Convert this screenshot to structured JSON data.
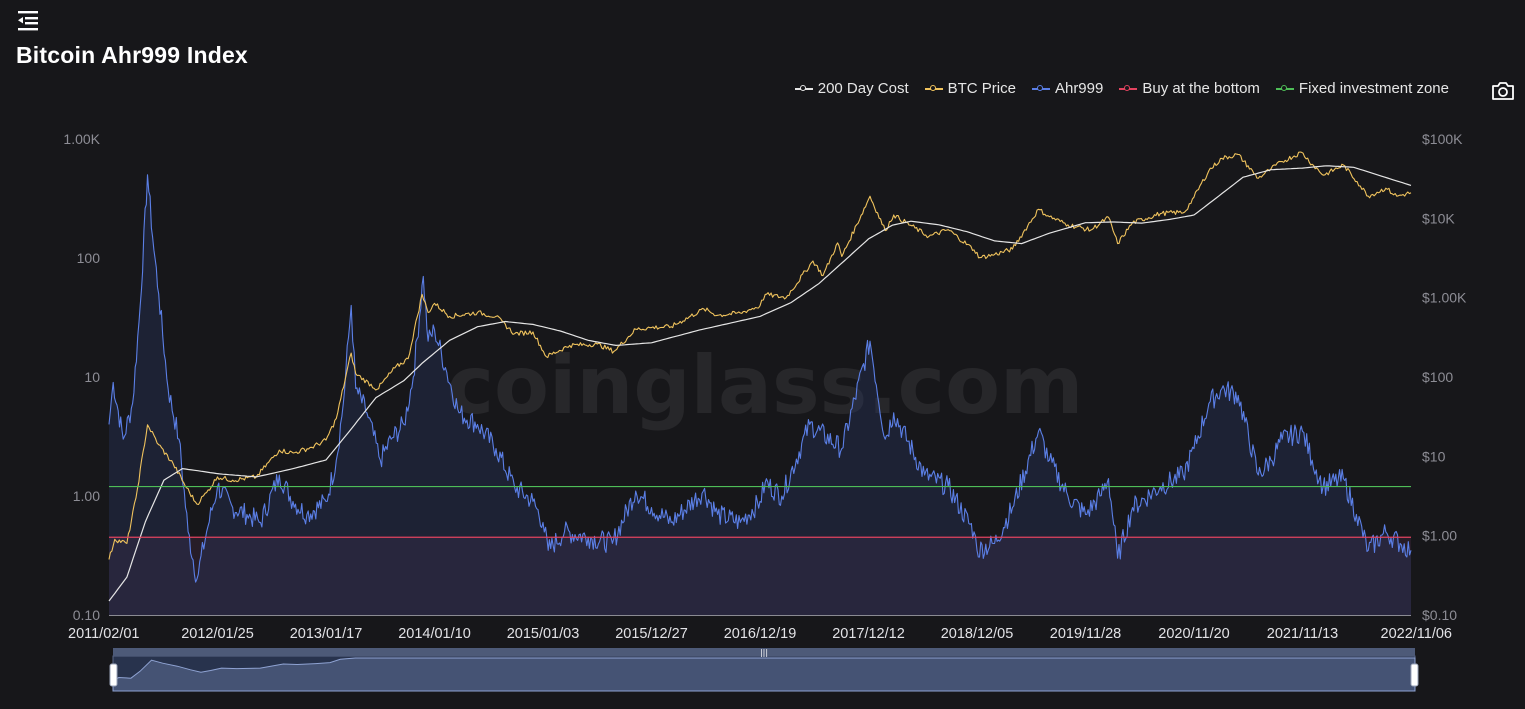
{
  "title": "Bitcoin Ahr999 Index",
  "icons": {
    "menu": "menu-collapse-icon",
    "camera": "camera-icon"
  },
  "watermark": "coinglass.com",
  "legend": [
    {
      "name": "200 Day Cost",
      "color": "#e5e5e5"
    },
    {
      "name": "BTC Price",
      "color": "#f0c35d"
    },
    {
      "name": "Ahr999",
      "color": "#5b7fe6"
    },
    {
      "name": "Buy at the bottom",
      "color": "#e2435f"
    },
    {
      "name": "Fixed investment zone",
      "color": "#4ebd57"
    }
  ],
  "chart_data": {
    "type": "line",
    "x_axis": {
      "type": "date",
      "range": [
        "2011/02/01",
        "2022/11/06"
      ],
      "tick_labels": [
        "2011/02/01",
        "2012/01/25",
        "2013/01/17",
        "2014/01/10",
        "2015/01/03",
        "2015/12/27",
        "2016/12/19",
        "2017/12/12",
        "2018/12/05",
        "2019/11/28",
        "2020/11/20",
        "2021/11/13",
        "2022/11/06"
      ]
    },
    "y_left": {
      "scale": "log",
      "range": [
        0.1,
        1000
      ],
      "tick_labels": [
        "0.10",
        "1.00",
        "10",
        "100",
        "1.00K"
      ]
    },
    "y_right": {
      "scale": "log",
      "range": [
        0.1,
        100000
      ],
      "tick_labels": [
        "$0.10",
        "$1.00",
        "$10",
        "$100",
        "$1.00K",
        "$10K",
        "$100K"
      ]
    },
    "horizontal_lines": [
      {
        "name": "Fixed investment zone",
        "value": 1.2
      },
      {
        "name": "Buy at the bottom",
        "value": 0.45
      }
    ],
    "series": [
      {
        "name": "Ahr999",
        "axis": "left",
        "points": [
          [
            "2011/02/01",
            4
          ],
          [
            "2011/02/15",
            9
          ],
          [
            "2011/03/20",
            3
          ],
          [
            "2011/04/20",
            6
          ],
          [
            "2011/05/15",
            40
          ],
          [
            "2011/06/08",
            500
          ],
          [
            "2011/06/25",
            150
          ],
          [
            "2011/07/15",
            50
          ],
          [
            "2011/08/15",
            8
          ],
          [
            "2011/09/20",
            3
          ],
          [
            "2011/10/20",
            0.5
          ],
          [
            "2011/11/18",
            0.2
          ],
          [
            "2011/12/20",
            0.5
          ],
          [
            "2012/01/25",
            1.2
          ],
          [
            "2012/03/15",
            0.8
          ],
          [
            "2012/05/01",
            0.7
          ],
          [
            "2012/06/15",
            0.6
          ],
          [
            "2012/08/16",
            1.5
          ],
          [
            "2012/09/30",
            0.9
          ],
          [
            "2012/11/15",
            0.7
          ],
          [
            "2013/01/17",
            0.9
          ],
          [
            "2013/02/20",
            2
          ],
          [
            "2013/03/15",
            6
          ],
          [
            "2013/04/10",
            40
          ],
          [
            "2013/04/25",
            8
          ],
          [
            "2013/06/01",
            5
          ],
          [
            "2013/07/15",
            2
          ],
          [
            "2013/08/20",
            3
          ],
          [
            "2013/10/01",
            4
          ],
          [
            "2013/11/01",
            10
          ],
          [
            "2013/12/04",
            70
          ],
          [
            "2013/12/20",
            20
          ],
          [
            "2014/01/10",
            25
          ],
          [
            "2014/02/15",
            12
          ],
          [
            "2014/04/01",
            5
          ],
          [
            "2014/06/01",
            4
          ],
          [
            "2014/08/01",
            2.5
          ],
          [
            "2014/10/01",
            1.2
          ],
          [
            "2014/12/01",
            0.9
          ],
          [
            "2015/01/03",
            0.6
          ],
          [
            "2015/01/20",
            0.35
          ],
          [
            "2015/03/15",
            0.5
          ],
          [
            "2015/06/01",
            0.45
          ],
          [
            "2015/08/20",
            0.4
          ],
          [
            "2015/11/05",
            1.1
          ],
          [
            "2015/12/27",
            0.8
          ],
          [
            "2016/03/01",
            0.6
          ],
          [
            "2016/06/15",
            1.1
          ],
          [
            "2016/08/01",
            0.7
          ],
          [
            "2016/10/15",
            0.6
          ],
          [
            "2016/12/19",
            0.9
          ],
          [
            "2017/01/05",
            1.3
          ],
          [
            "2017/03/01",
            1.0
          ],
          [
            "2017/06/01",
            4
          ],
          [
            "2017/09/15",
            2.5
          ],
          [
            "2017/12/17",
            20
          ],
          [
            "2018/02/05",
            3
          ],
          [
            "2018/03/05",
            5
          ],
          [
            "2018/06/15",
            1.5
          ],
          [
            "2018/09/01",
            1.2
          ],
          [
            "2018/11/25",
            0.5
          ],
          [
            "2018/12/05",
            0.35
          ],
          [
            "2019/02/01",
            0.4
          ],
          [
            "2019/04/01",
            0.8
          ],
          [
            "2019/06/26",
            3.5
          ],
          [
            "2019/08/01",
            2
          ],
          [
            "2019/10/01",
            1.0
          ],
          [
            "2019/11/28",
            0.7
          ],
          [
            "2020/01/15",
            1.0
          ],
          [
            "2020/02/12",
            1.4
          ],
          [
            "2020/03/13",
            0.3
          ],
          [
            "2020/05/01",
            0.8
          ],
          [
            "2020/08/01",
            1.2
          ],
          [
            "2020/10/15",
            1.5
          ],
          [
            "2020/11/20",
            2.5
          ],
          [
            "2021/01/08",
            6
          ],
          [
            "2021/02/20",
            8
          ],
          [
            "2021/04/15",
            7
          ],
          [
            "2021/06/20",
            1.5
          ],
          [
            "2021/08/01",
            2
          ],
          [
            "2021/09/07",
            3
          ],
          [
            "2021/11/13",
            3.5
          ],
          [
            "2021/12/15",
            2
          ],
          [
            "2022/01/20",
            1.2
          ],
          [
            "2022/03/28",
            1.4
          ],
          [
            "2022/05/10",
            0.7
          ],
          [
            "2022/06/18",
            0.35
          ],
          [
            "2022/08/15",
            0.5
          ],
          [
            "2022/10/01",
            0.4
          ],
          [
            "2022/11/06",
            0.35
          ]
        ]
      },
      {
        "name": "BTC Price",
        "axis": "right",
        "points": [
          [
            "2011/02/01",
            0.5
          ],
          [
            "2011/02/20",
            0.9
          ],
          [
            "2011/04/01",
            0.8
          ],
          [
            "2011/05/01",
            3
          ],
          [
            "2011/06/08",
            25
          ],
          [
            "2011/07/15",
            14
          ],
          [
            "2011/09/01",
            8
          ],
          [
            "2011/10/15",
            4
          ],
          [
            "2011/11/18",
            2.5
          ],
          [
            "2011/12/20",
            3.5
          ],
          [
            "2012/01/25",
            5.5
          ],
          [
            "2012/03/15",
            5
          ],
          [
            "2012/06/01",
            5.5
          ],
          [
            "2012/08/16",
            12
          ],
          [
            "2012/10/01",
            11
          ],
          [
            "2012/12/01",
            13
          ],
          [
            "2013/01/17",
            16
          ],
          [
            "2013/02/20",
            30
          ],
          [
            "2013/04/10",
            200
          ],
          [
            "2013/04/25",
            110
          ],
          [
            "2013/07/05",
            70
          ],
          [
            "2013/09/01",
            130
          ],
          [
            "2013/10/15",
            170
          ],
          [
            "2013/11/30",
            1100
          ],
          [
            "2013/12/20",
            650
          ],
          [
            "2014/01/10",
            850
          ],
          [
            "2014/03/01",
            580
          ],
          [
            "2014/06/01",
            650
          ],
          [
            "2014/08/01",
            580
          ],
          [
            "2014/10/01",
            350
          ],
          [
            "2014/12/01",
            370
          ],
          [
            "2015/01/14",
            180
          ],
          [
            "2015/04/01",
            250
          ],
          [
            "2015/07/01",
            260
          ],
          [
            "2015/08/25",
            210
          ],
          [
            "2015/11/05",
            400
          ],
          [
            "2015/12/27",
            420
          ],
          [
            "2016/03/01",
            430
          ],
          [
            "2016/06/17",
            720
          ],
          [
            "2016/08/01",
            600
          ],
          [
            "2016/10/15",
            640
          ],
          [
            "2016/12/19",
            790
          ],
          [
            "2017/01/05",
            1100
          ],
          [
            "2017/03/15",
            1000
          ],
          [
            "2017/06/12",
            2900
          ],
          [
            "2017/07/15",
            1900
          ],
          [
            "2017/09/01",
            4900
          ],
          [
            "2017/09/15",
            3300
          ],
          [
            "2017/12/17",
            19000
          ],
          [
            "2018/02/05",
            7000
          ],
          [
            "2018/03/05",
            11000
          ],
          [
            "2018/06/29",
            5900
          ],
          [
            "2018/09/01",
            7200
          ],
          [
            "2018/11/25",
            4000
          ],
          [
            "2018/12/15",
            3200
          ],
          [
            "2019/02/01",
            3500
          ],
          [
            "2019/04/01",
            4100
          ],
          [
            "2019/06/26",
            13000
          ],
          [
            "2019/08/01",
            10500
          ],
          [
            "2019/10/01",
            8300
          ],
          [
            "2019/12/15",
            7100
          ],
          [
            "2020/02/12",
            10300
          ],
          [
            "2020/03/13",
            4800
          ],
          [
            "2020/05/01",
            8800
          ],
          [
            "2020/08/01",
            11500
          ],
          [
            "2020/10/20",
            12000
          ],
          [
            "2020/11/20",
            18500
          ],
          [
            "2021/01/08",
            40000
          ],
          [
            "2021/02/20",
            57000
          ],
          [
            "2021/04/14",
            64000
          ],
          [
            "2021/06/20",
            32000
          ],
          [
            "2021/08/01",
            42000
          ],
          [
            "2021/09/07",
            52000
          ],
          [
            "2021/11/10",
            68000
          ],
          [
            "2021/12/15",
            48000
          ],
          [
            "2022/01/22",
            35000
          ],
          [
            "2022/03/28",
            47000
          ],
          [
            "2022/05/12",
            29000
          ],
          [
            "2022/06/18",
            19000
          ],
          [
            "2022/08/15",
            24000
          ],
          [
            "2022/09/20",
            19000
          ],
          [
            "2022/11/06",
            21000
          ]
        ]
      },
      {
        "name": "200 Day Cost",
        "axis": "right",
        "points": [
          [
            "2011/02/01",
            0.15
          ],
          [
            "2011/04/01",
            0.3
          ],
          [
            "2011/06/01",
            1.5
          ],
          [
            "2011/08/01",
            5
          ],
          [
            "2011/10/01",
            7
          ],
          [
            "2011/12/01",
            6.5
          ],
          [
            "2012/02/01",
            6
          ],
          [
            "2012/06/01",
            5.5
          ],
          [
            "2012/10/01",
            7
          ],
          [
            "2013/01/17",
            9
          ],
          [
            "2013/04/01",
            20
          ],
          [
            "2013/07/01",
            55
          ],
          [
            "2013/10/01",
            90
          ],
          [
            "2013/12/01",
            150
          ],
          [
            "2014/03/01",
            290
          ],
          [
            "2014/06/01",
            430
          ],
          [
            "2014/09/01",
            500
          ],
          [
            "2014/12/01",
            460
          ],
          [
            "2015/03/01",
            380
          ],
          [
            "2015/06/01",
            290
          ],
          [
            "2015/09/01",
            250
          ],
          [
            "2015/12/27",
            270
          ],
          [
            "2016/06/01",
            390
          ],
          [
            "2016/12/19",
            580
          ],
          [
            "2017/04/01",
            870
          ],
          [
            "2017/07/01",
            1500
          ],
          [
            "2017/10/01",
            3100
          ],
          [
            "2017/12/12",
            5500
          ],
          [
            "2018/03/01",
            8200
          ],
          [
            "2018/05/01",
            9200
          ],
          [
            "2018/08/01",
            8300
          ],
          [
            "2018/11/01",
            6800
          ],
          [
            "2019/02/01",
            5200
          ],
          [
            "2019/05/01",
            4800
          ],
          [
            "2019/08/01",
            6500
          ],
          [
            "2019/11/28",
            8800
          ],
          [
            "2020/03/01",
            9000
          ],
          [
            "2020/06/01",
            8700
          ],
          [
            "2020/09/01",
            9700
          ],
          [
            "2020/11/20",
            11000
          ],
          [
            "2021/02/01",
            18000
          ],
          [
            "2021/05/01",
            33000
          ],
          [
            "2021/08/01",
            41000
          ],
          [
            "2021/11/13",
            43000
          ],
          [
            "2022/02/01",
            46000
          ],
          [
            "2022/05/01",
            44000
          ],
          [
            "2022/08/01",
            34000
          ],
          [
            "2022/11/06",
            26000
          ]
        ]
      }
    ],
    "slider": {
      "start": "2011/02/01",
      "end": "2022/11/06"
    },
    "grid": false,
    "legend_position": "top-right"
  }
}
